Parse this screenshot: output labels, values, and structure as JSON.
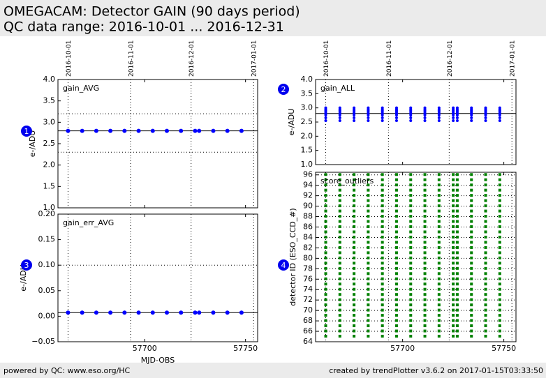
{
  "header": {
    "title": "OMEGACAM: Detector GAIN (90 days period)",
    "subtitle": "QC data range: 2016-10-01 ... 2016-12-31"
  },
  "footer": {
    "left": "powered by QC: www.eso.org/HC",
    "right": "created by trendPlotter v3.6.2 on 2017-01-15T03:33:50"
  },
  "chart_data": [
    {
      "type": "scatter",
      "badge": "1",
      "label": "gain_AVG",
      "ylabel": "e-/ADU",
      "color": "#0000ff",
      "xlim": [
        57657,
        57756
      ],
      "xticks": [
        57700,
        57750
      ],
      "date_ticks": [
        {
          "value": 57662,
          "label": "2016-10-01"
        },
        {
          "value": 57693,
          "label": "2016-11-01"
        },
        {
          "value": 57723,
          "label": "2016-12-01"
        },
        {
          "value": 57754,
          "label": "2017-01-01"
        }
      ],
      "ylim": [
        1.0,
        4.0
      ],
      "yticks": [
        {
          "value": 1.0,
          "label": "1.0"
        },
        {
          "value": 1.5,
          "label": "1.5"
        },
        {
          "value": 2.0,
          "label": "2.0"
        },
        {
          "value": 2.5,
          "label": "2.5"
        },
        {
          "value": 3.0,
          "label": "3.0"
        },
        {
          "value": 3.5,
          "label": "3.5"
        },
        {
          "value": 4.0,
          "label": "4.0"
        }
      ],
      "x": [
        57662,
        57669,
        57676,
        57683,
        57690,
        57697,
        57704,
        57711,
        57718,
        57725,
        57727,
        57734,
        57741,
        57748
      ],
      "values": [
        2.8,
        2.8,
        2.8,
        2.8,
        2.8,
        2.8,
        2.8,
        2.8,
        2.8,
        2.8,
        2.8,
        2.8,
        2.8,
        2.8
      ],
      "ref_lines": [
        {
          "value": 2.8,
          "style": "solid"
        },
        {
          "value": 3.2,
          "style": "dotted"
        },
        {
          "value": 2.3,
          "style": "dotted"
        }
      ]
    },
    {
      "type": "strip",
      "badge": "2",
      "label": "gain_ALL",
      "ylabel": "e-/ADU",
      "color": "#0000ff",
      "xlim": [
        57657,
        57756
      ],
      "xticks": [
        57700,
        57750
      ],
      "date_ticks": [
        {
          "value": 57662,
          "label": "2016-10-01"
        },
        {
          "value": 57693,
          "label": "2016-11-01"
        },
        {
          "value": 57723,
          "label": "2016-12-01"
        },
        {
          "value": 57754,
          "label": "2017-01-01"
        }
      ],
      "ylim": [
        1.0,
        4.0
      ],
      "yticks": [
        {
          "value": 1.0,
          "label": "1.0"
        },
        {
          "value": 1.5,
          "label": "1.5"
        },
        {
          "value": 2.0,
          "label": "2.0"
        },
        {
          "value": 2.5,
          "label": "2.5"
        },
        {
          "value": 3.0,
          "label": "3.0"
        },
        {
          "value": 3.5,
          "label": "3.5"
        },
        {
          "value": 4.0,
          "label": "4.0"
        }
      ],
      "x": [
        57662,
        57669,
        57676,
        57683,
        57690,
        57697,
        57704,
        57711,
        57718,
        57725,
        57727,
        57734,
        57741,
        57748
      ],
      "values": [
        [
          2.55,
          2.65,
          2.75,
          2.8,
          2.85,
          2.9,
          2.95,
          3.0
        ],
        [
          2.55,
          2.65,
          2.75,
          2.8,
          2.85,
          2.9,
          2.95,
          3.0
        ],
        [
          2.55,
          2.65,
          2.75,
          2.8,
          2.85,
          2.9,
          2.95,
          3.0
        ],
        [
          2.55,
          2.65,
          2.75,
          2.8,
          2.85,
          2.9,
          2.95,
          3.0
        ],
        [
          2.55,
          2.65,
          2.75,
          2.8,
          2.85,
          2.9,
          2.95,
          3.0
        ],
        [
          2.55,
          2.65,
          2.75,
          2.8,
          2.85,
          2.9,
          2.95,
          3.0
        ],
        [
          2.55,
          2.65,
          2.75,
          2.8,
          2.85,
          2.9,
          2.95,
          3.0
        ],
        [
          2.55,
          2.65,
          2.75,
          2.8,
          2.85,
          2.9,
          2.95,
          3.0
        ],
        [
          2.55,
          2.65,
          2.75,
          2.8,
          2.85,
          2.9,
          2.95,
          3.0
        ],
        [
          2.55,
          2.65,
          2.75,
          2.8,
          2.85,
          2.9,
          2.95,
          3.0
        ],
        [
          2.55,
          2.65,
          2.75,
          2.8,
          2.85,
          2.9,
          2.95,
          3.0
        ],
        [
          2.55,
          2.65,
          2.75,
          2.8,
          2.85,
          2.9,
          2.95,
          3.0
        ],
        [
          2.55,
          2.65,
          2.75,
          2.8,
          2.85,
          2.9,
          2.95,
          3.0
        ],
        [
          2.55,
          2.65,
          2.75,
          2.8,
          2.85,
          2.9,
          2.95,
          3.0
        ]
      ],
      "ref_lines": [
        {
          "value": 2.8,
          "style": "solid"
        }
      ]
    },
    {
      "type": "scatter",
      "badge": "3",
      "label": "gain_err_AVG",
      "ylabel": "e-/ADU",
      "xlabel": "MJD-OBS",
      "color": "#0000ff",
      "xlim": [
        57657,
        57756
      ],
      "xticks": [
        57700,
        57750
      ],
      "xtick_labels": true,
      "date_grid": [
        57662,
        57693,
        57723,
        57754
      ],
      "ylim": [
        -0.05,
        0.2
      ],
      "yticks": [
        {
          "value": -0.05,
          "label": "−0.05"
        },
        {
          "value": 0.0,
          "label": "0.00"
        },
        {
          "value": 0.05,
          "label": "0.05"
        },
        {
          "value": 0.1,
          "label": "0.10"
        },
        {
          "value": 0.15,
          "label": "0.15"
        },
        {
          "value": 0.2,
          "label": "0.20"
        }
      ],
      "x": [
        57662,
        57669,
        57676,
        57683,
        57690,
        57697,
        57704,
        57711,
        57718,
        57725,
        57727,
        57734,
        57741,
        57748
      ],
      "values": [
        0.007,
        0.007,
        0.007,
        0.007,
        0.007,
        0.007,
        0.007,
        0.007,
        0.007,
        0.007,
        0.007,
        0.007,
        0.007,
        0.007
      ],
      "ref_lines": [
        {
          "value": 0.007,
          "style": "solid"
        },
        {
          "value": 0.1,
          "style": "dotted"
        }
      ]
    },
    {
      "type": "occupancy",
      "badge": "4",
      "label": "score_outliers",
      "ylabel": "detector ID (ESO_CCD_#)",
      "color": "#008000",
      "xlim": [
        57657,
        57756
      ],
      "xticks": [
        57700,
        57750
      ],
      "xtick_labels": true,
      "date_grid": [
        57662,
        57693,
        57723,
        57754
      ],
      "grid": true,
      "ylim": [
        64,
        96.5
      ],
      "yticks": [
        64,
        66,
        68,
        70,
        72,
        74,
        76,
        78,
        80,
        82,
        84,
        86,
        88,
        90,
        92,
        94,
        96
      ],
      "x": [
        57662,
        57669,
        57676,
        57683,
        57690,
        57697,
        57704,
        57711,
        57718,
        57725,
        57727,
        57734,
        57741,
        57748
      ],
      "detectors": [
        65,
        66,
        67,
        68,
        69,
        70,
        71,
        72,
        73,
        74,
        75,
        76,
        77,
        78,
        79,
        80,
        81,
        82,
        83,
        84,
        85,
        86,
        87,
        88,
        89,
        90,
        91,
        92,
        93,
        94,
        95,
        96
      ]
    }
  ]
}
